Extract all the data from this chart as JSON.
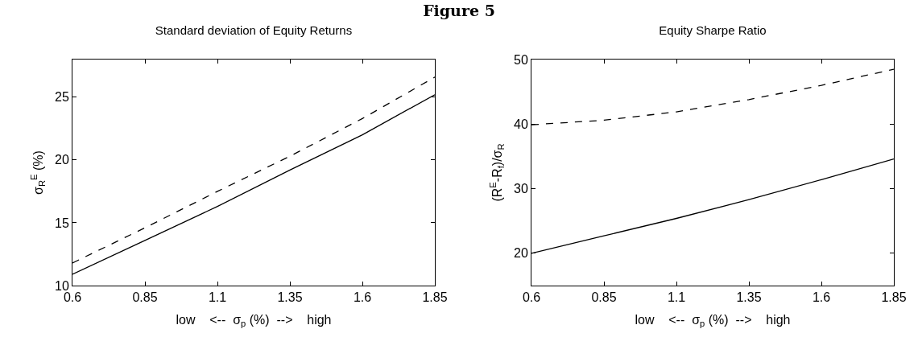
{
  "chart_data": [
    {
      "type": "line",
      "title": "Figure 5",
      "subtitle": "Standard deviation of Equity Returns",
      "xlabel": "low    <--  σ$_{p}$ (%)  -->    high",
      "ylabel": "σ$_{R}$$^{E}$ (%)",
      "x": [
        0.6,
        0.85,
        1.1,
        1.35,
        1.6,
        1.85
      ],
      "series": [
        {
          "color": "#000000",
          "line_style": "solid",
          "values": [
            10.9,
            13.6,
            16.3,
            19.2,
            22.0,
            25.2
          ]
        },
        {
          "color": "#000000",
          "line_style": "dashed",
          "values": [
            11.8,
            14.6,
            17.5,
            20.3,
            23.3,
            26.6
          ]
        }
      ],
      "xlim": [
        0.6,
        1.85
      ],
      "xticks": [
        0.6,
        0.85,
        1.1,
        1.35,
        1.6,
        1.85
      ],
      "ylim": [
        10,
        28
      ],
      "yticks": [
        10,
        15,
        20,
        25
      ],
      "grid": false,
      "marker": "none"
    },
    {
      "type": "line",
      "title": "Equity Sharpe Ratio",
      "xlabel": "low    <--  σ$_{p}$ (%)  -->    high",
      "ylabel": "(R$^{E}$-R$_{f}$)/σ$_{R}$",
      "x": [
        0.6,
        0.85,
        1.1,
        1.35,
        1.6,
        1.85
      ],
      "series": [
        {
          "color": "#000000",
          "line_style": "solid",
          "values": [
            20.0,
            22.7,
            25.4,
            28.3,
            31.4,
            34.6
          ]
        },
        {
          "color": "#000000",
          "line_style": "dashed",
          "values": [
            39.9,
            40.6,
            41.9,
            43.8,
            46.0,
            48.5
          ]
        }
      ],
      "xlim": [
        0.6,
        1.85
      ],
      "xticks": [
        0.6,
        0.85,
        1.1,
        1.35,
        1.6,
        1.85
      ],
      "ylim": [
        15,
        50
      ],
      "yticks": [
        20,
        30,
        40,
        50
      ],
      "grid": false,
      "marker": "none"
    }
  ]
}
